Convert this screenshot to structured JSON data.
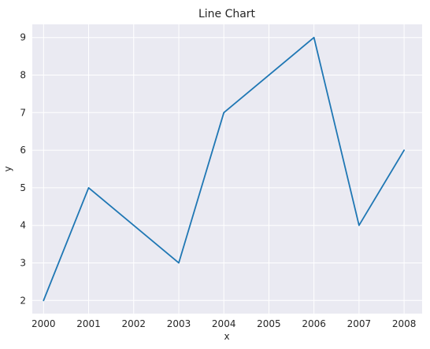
{
  "chart_data": {
    "type": "line",
    "title": "Line Chart",
    "xlabel": "x",
    "ylabel": "y",
    "x": [
      2000,
      2001,
      2003,
      2004,
      2006,
      2007,
      2008
    ],
    "xticks": [
      "2000",
      "2001",
      "2002",
      "2003",
      "2004",
      "2005",
      "2006",
      "2007",
      "2008"
    ],
    "yticks": [
      "2",
      "3",
      "4",
      "5",
      "6",
      "7",
      "8",
      "9"
    ],
    "xlim": [
      1999.75,
      2008.4
    ],
    "ylim": [
      1.65,
      9.35
    ],
    "grid": true,
    "series": [
      {
        "name": "y",
        "values": [
          2,
          5,
          3,
          7,
          9,
          4,
          6
        ],
        "color": "#1f77b4"
      }
    ],
    "background": "#eaeaf2",
    "grid_color": "#ffffff"
  }
}
